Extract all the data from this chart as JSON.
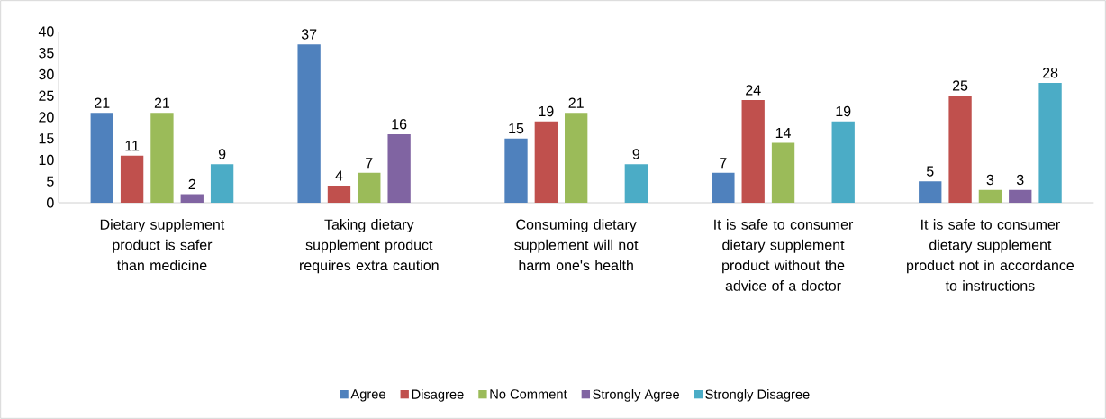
{
  "chart_data": {
    "type": "bar",
    "categories": [
      "Dietary supplement product is safer than medicine",
      "Taking dietary supplement product requires extra caution",
      "Consuming dietary supplement will not harm one's health",
      "It is safe to consumer dietary supplement product without the advice of a doctor",
      "It is safe to consumer dietary supplement product not in accordance to instructions"
    ],
    "series": [
      {
        "name": "Agree",
        "color": "#4f81bd",
        "values": [
          21,
          37,
          15,
          7,
          5
        ]
      },
      {
        "name": "Disagree",
        "color": "#c0504d",
        "values": [
          11,
          4,
          19,
          24,
          25
        ]
      },
      {
        "name": "No Comment",
        "color": "#9bbb59",
        "values": [
          21,
          7,
          21,
          14,
          3
        ]
      },
      {
        "name": "Strongly Agree",
        "color": "#8064a2",
        "values": [
          2,
          16,
          null,
          null,
          3
        ]
      },
      {
        "name": "Strongly Disagree",
        "color": "#4bacc6",
        "values": [
          9,
          null,
          9,
          19,
          28
        ]
      }
    ],
    "ylim": [
      0,
      40
    ],
    "yticks": [
      0,
      5,
      10,
      15,
      20,
      25,
      30,
      35,
      40
    ],
    "data_labels": true,
    "legend": "bottom",
    "grid": false
  }
}
